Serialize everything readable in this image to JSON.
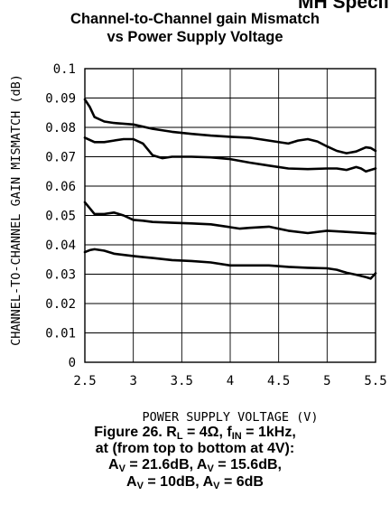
{
  "header_fragment": "MH Specific",
  "chart_data": {
    "type": "line",
    "title_line1": "Channel-to-Channel gain Mismatch",
    "title_line2": "vs Power Supply Voltage",
    "xlabel": "POWER SUPPLY VOLTAGE (V)",
    "ylabel": "CHANNEL-TO-CHANNEL GAIN MISMATCH (dB)",
    "xlim": [
      2.5,
      5.5
    ],
    "ylim": [
      0,
      0.1
    ],
    "x_ticks": [
      "2.5",
      "3",
      "3.5",
      "4",
      "4.5",
      "5",
      "5.5"
    ],
    "y_ticks": [
      "0",
      "0.01",
      "0.02",
      "0.03",
      "0.04",
      "0.05",
      "0.06",
      "0.07",
      "0.08",
      "0.09",
      "0.1"
    ],
    "grid": true,
    "series": [
      {
        "x": [
          2.5,
          2.55,
          2.6,
          2.7,
          2.8,
          3.0,
          3.2,
          3.4,
          3.6,
          3.8,
          4.0,
          4.2,
          4.4,
          4.6,
          4.7,
          4.8,
          4.9,
          5.0,
          5.1,
          5.2,
          5.3,
          5.4,
          5.45,
          5.5
        ],
        "y": [
          0.0895,
          0.087,
          0.0835,
          0.082,
          0.0815,
          0.081,
          0.0795,
          0.0785,
          0.0778,
          0.0772,
          0.0768,
          0.0765,
          0.0755,
          0.0745,
          0.0755,
          0.076,
          0.0752,
          0.0735,
          0.072,
          0.0712,
          0.0718,
          0.0732,
          0.073,
          0.072
        ]
      },
      {
        "x": [
          2.5,
          2.6,
          2.7,
          2.8,
          2.9,
          3.0,
          3.1,
          3.2,
          3.3,
          3.4,
          3.6,
          3.8,
          4.0,
          4.2,
          4.4,
          4.6,
          4.8,
          5.0,
          5.1,
          5.2,
          5.3,
          5.35,
          5.4,
          5.45,
          5.5
        ],
        "y": [
          0.0765,
          0.075,
          0.075,
          0.0755,
          0.076,
          0.076,
          0.0745,
          0.0705,
          0.0695,
          0.07,
          0.07,
          0.0698,
          0.0692,
          0.068,
          0.067,
          0.066,
          0.0658,
          0.066,
          0.066,
          0.0655,
          0.0665,
          0.066,
          0.065,
          0.0655,
          0.066
        ]
      },
      {
        "x": [
          2.5,
          2.55,
          2.6,
          2.7,
          2.8,
          2.9,
          3.0,
          3.1,
          3.2,
          3.4,
          3.6,
          3.8,
          4.0,
          4.1,
          4.2,
          4.4,
          4.6,
          4.8,
          5.0,
          5.2,
          5.4,
          5.5
        ],
        "y": [
          0.0545,
          0.0525,
          0.0505,
          0.0505,
          0.051,
          0.05,
          0.0485,
          0.0482,
          0.0478,
          0.0475,
          0.0473,
          0.047,
          0.046,
          0.0455,
          0.0458,
          0.0462,
          0.0448,
          0.044,
          0.0448,
          0.0444,
          0.044,
          0.0438
        ]
      },
      {
        "x": [
          2.5,
          2.55,
          2.6,
          2.7,
          2.8,
          3.0,
          3.1,
          3.2,
          3.4,
          3.6,
          3.8,
          4.0,
          4.2,
          4.4,
          4.6,
          4.8,
          5.0,
          5.1,
          5.2,
          5.3,
          5.4,
          5.45,
          5.5
        ],
        "y": [
          0.0375,
          0.0382,
          0.0385,
          0.038,
          0.037,
          0.0362,
          0.0358,
          0.0355,
          0.0348,
          0.0345,
          0.034,
          0.033,
          0.033,
          0.033,
          0.0325,
          0.0322,
          0.032,
          0.0315,
          0.0305,
          0.0298,
          0.029,
          0.0285,
          0.0303
        ]
      }
    ]
  },
  "caption": {
    "line1_a": "Figure 26. R",
    "line1_sub_a": "L",
    "line1_b": " = 4Ω, f",
    "line1_sub_b": "IN",
    "line1_c": " = 1kHz,",
    "line2": "at (from top to bottom at 4V):",
    "line3_a": "A",
    "line3_sub_a": "V",
    "line3_b": " = 21.6dB, A",
    "line3_sub_b": "V",
    "line3_c": " = 15.6dB,",
    "line4_a": "A",
    "line4_sub_a": "V",
    "line4_b": " = 10dB, A",
    "line4_sub_b": "V",
    "line4_c": " = 6dB"
  }
}
